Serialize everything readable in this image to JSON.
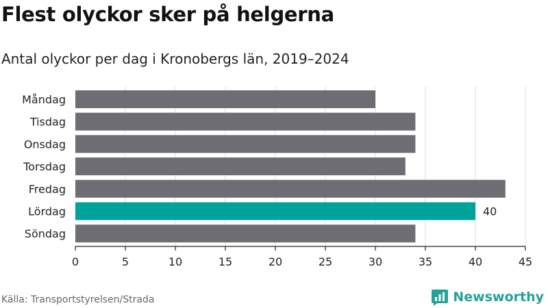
{
  "title": "Flest olyckor sker på helgerna",
  "subtitle": "Antal olyckor per dag i Kronobergs län, 2019–2024",
  "source": "Källa: Transportstyrelsen/Strada",
  "brand": {
    "name": "Newsworthy",
    "icon": "newsworthy-logo-icon",
    "color": "#24a297"
  },
  "colors": {
    "bar": "#6e6d74",
    "highlight": "#00a39a",
    "grid": "#dddddd",
    "axis": "#222222"
  },
  "chart_data": {
    "type": "bar",
    "orientation": "horizontal",
    "title": "Flest olyckor sker på helgerna",
    "subtitle": "Antal olyckor per dag i Kronobergs län, 2019–2024",
    "categories": [
      "Måndag",
      "Tisdag",
      "Onsdag",
      "Torsdag",
      "Fredag",
      "Lördag",
      "Söndag"
    ],
    "values": [
      30,
      34,
      34,
      33,
      43,
      40,
      34
    ],
    "highlight_index": 5,
    "data_labels": [
      {
        "index": 5,
        "text": "40"
      }
    ],
    "xlim": [
      0,
      45
    ],
    "xticks": [
      0,
      5,
      10,
      15,
      20,
      25,
      30,
      35,
      40,
      45
    ],
    "grid": "vertical",
    "legend": "none"
  }
}
